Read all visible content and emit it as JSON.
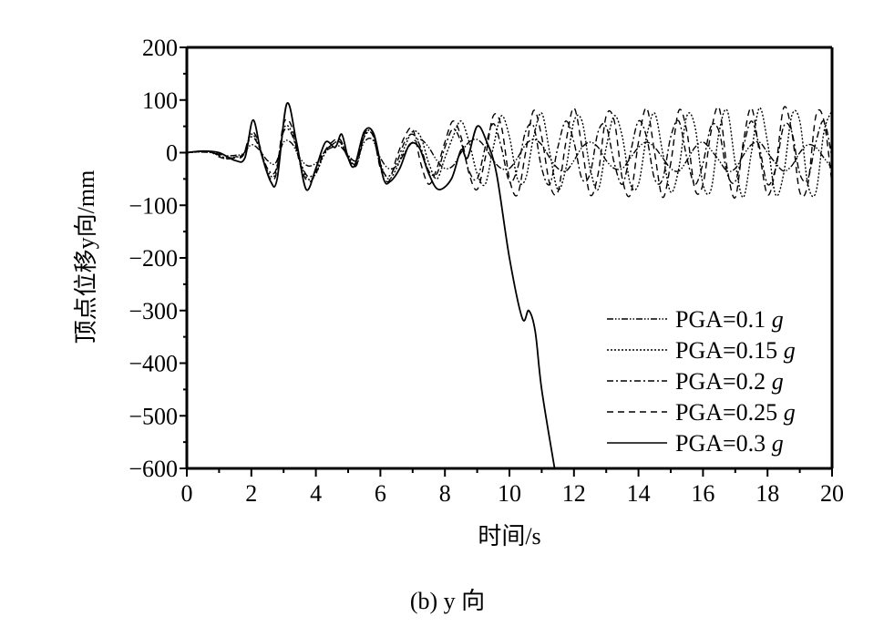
{
  "chart_data": {
    "type": "line",
    "title": "",
    "caption": "(b) y 向",
    "xlabel": "时间/s",
    "ylabel": "顶点位移y向/mm",
    "xlim": [
      0,
      20
    ],
    "ylim": [
      -600,
      200
    ],
    "xticks": [
      0,
      2,
      4,
      6,
      8,
      10,
      12,
      14,
      16,
      18,
      20
    ],
    "yticks": [
      200,
      100,
      0,
      -100,
      -200,
      -300,
      -400,
      -500,
      -600
    ],
    "ytick_labels": [
      "200",
      "100",
      "0",
      "−100",
      "−200",
      "−300",
      "−400",
      "−500",
      "−600"
    ],
    "grid": false,
    "legend_position": "bottom-right",
    "t_step": 0.25,
    "series": [
      {
        "name": "PGA=0.1 g",
        "label": "PGA=0.1",
        "unit": "g",
        "style": "dash-dot-dot",
        "values": [
          0,
          1,
          1,
          0,
          -3,
          -6,
          -5,
          -2,
          15,
          5,
          -15,
          -20,
          20,
          18,
          -10,
          -25,
          -20,
          0,
          10,
          12,
          -5,
          -15,
          20,
          25,
          -10,
          -30,
          -25,
          0,
          20,
          25,
          10,
          -15,
          -30,
          -25,
          0,
          20,
          25,
          10,
          -15,
          -30,
          -30,
          -10,
          15,
          25,
          15,
          -10,
          -30,
          -35,
          -15,
          10,
          20,
          10,
          -15,
          -30,
          -30,
          -10,
          10,
          20,
          10,
          -10,
          -30,
          -35,
          -15,
          10,
          20,
          5,
          -15,
          -35,
          -30,
          -5,
          15,
          20,
          0,
          -20,
          -35,
          -25,
          0,
          15,
          10,
          -10,
          -30
        ]
      },
      {
        "name": "PGA=0.15 g",
        "label": "PGA=0.15",
        "unit": "g",
        "style": "dotted",
        "values": [
          0,
          1,
          2,
          1,
          -6,
          -10,
          -8,
          -4,
          35,
          10,
          -35,
          -40,
          45,
          40,
          -15,
          -50,
          -40,
          -5,
          15,
          20,
          -5,
          -25,
          30,
          40,
          -20,
          -50,
          -30,
          10,
          40,
          30,
          -20,
          -50,
          -10,
          30,
          60,
          20,
          -40,
          -60,
          10,
          70,
          30,
          -50,
          -50,
          30,
          75,
          0,
          -70,
          -30,
          60,
          60,
          -30,
          -70,
          10,
          70,
          30,
          -60,
          -60,
          30,
          75,
          0,
          -75,
          -30,
          70,
          50,
          -60,
          -70,
          40,
          80,
          -20,
          -85,
          0,
          85,
          20,
          -80,
          -40,
          70,
          60,
          -60,
          -75,
          40,
          80
        ]
      },
      {
        "name": "PGA=0.2 g",
        "label": "PGA=0.2",
        "unit": "g",
        "style": "dash-dot",
        "values": [
          0,
          1,
          2,
          1,
          -5,
          -12,
          -8,
          -3,
          30,
          10,
          -30,
          -35,
          40,
          35,
          -15,
          -45,
          -35,
          0,
          15,
          20,
          -10,
          -20,
          30,
          35,
          -25,
          -45,
          -20,
          20,
          35,
          10,
          -35,
          -40,
          10,
          45,
          20,
          -35,
          -50,
          10,
          55,
          10,
          -55,
          -30,
          40,
          50,
          -30,
          -60,
          10,
          60,
          20,
          -50,
          -40,
          40,
          50,
          -20,
          -60,
          0,
          60,
          30,
          -50,
          -50,
          30,
          60,
          -10,
          -60,
          -20,
          50,
          40,
          -40,
          -55,
          10,
          60,
          10,
          -60,
          -30,
          50,
          40,
          -40,
          -50,
          20,
          60,
          -10
        ]
      },
      {
        "name": "PGA=0.25 g",
        "label": "PGA=0.25",
        "unit": "g",
        "style": "dashed",
        "values": [
          0,
          2,
          3,
          1,
          -8,
          -12,
          -10,
          -5,
          40,
          15,
          -40,
          -45,
          55,
          50,
          -20,
          -55,
          -40,
          0,
          20,
          25,
          -10,
          -25,
          35,
          40,
          -30,
          -55,
          -10,
          30,
          45,
          -20,
          -60,
          -30,
          20,
          60,
          30,
          -40,
          -70,
          -10,
          70,
          50,
          -50,
          -80,
          0,
          80,
          30,
          -60,
          -75,
          20,
          85,
          10,
          -80,
          -40,
          70,
          60,
          -50,
          -80,
          20,
          85,
          0,
          -85,
          -20,
          80,
          40,
          -70,
          -60,
          40,
          85,
          -30,
          -85,
          20,
          85,
          0,
          -80,
          -30,
          85,
          40,
          -75,
          -60,
          70,
          60,
          -60
        ]
      },
      {
        "name": "PGA=0.3 g",
        "label": "PGA=0.3",
        "unit": "g",
        "style": "solid",
        "points": [
          [
            0,
            0
          ],
          [
            0.5,
            3
          ],
          [
            1,
            0
          ],
          [
            1.5,
            -15
          ],
          [
            1.8,
            -10
          ],
          [
            2.05,
            62
          ],
          [
            2.3,
            0
          ],
          [
            2.6,
            -55
          ],
          [
            2.8,
            -50
          ],
          [
            3.1,
            93
          ],
          [
            3.4,
            20
          ],
          [
            3.7,
            -70
          ],
          [
            4.0,
            -30
          ],
          [
            4.3,
            20
          ],
          [
            4.6,
            10
          ],
          [
            4.8,
            35
          ],
          [
            5.0,
            -10
          ],
          [
            5.2,
            -25
          ],
          [
            5.5,
            40
          ],
          [
            5.8,
            35
          ],
          [
            6.1,
            -50
          ],
          [
            6.3,
            -55
          ],
          [
            6.6,
            -30
          ],
          [
            6.9,
            15
          ],
          [
            7.2,
            10
          ],
          [
            7.5,
            -40
          ],
          [
            7.8,
            -70
          ],
          [
            8.2,
            -50
          ],
          [
            8.5,
            5
          ],
          [
            8.7,
            -10
          ],
          [
            9.0,
            50
          ],
          [
            9.3,
            20
          ],
          [
            9.6,
            -40
          ],
          [
            10.0,
            -200
          ],
          [
            10.4,
            -315
          ],
          [
            10.6,
            -300
          ],
          [
            10.8,
            -340
          ],
          [
            11.0,
            -450
          ],
          [
            11.4,
            -600
          ]
        ]
      }
    ]
  }
}
